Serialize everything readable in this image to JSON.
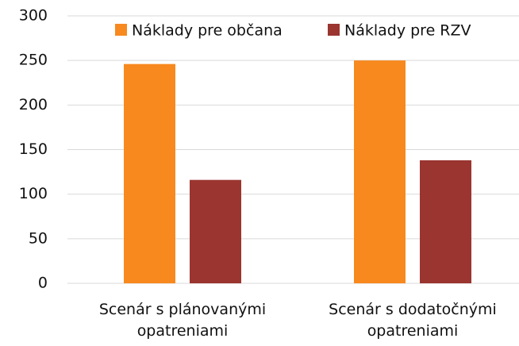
{
  "chart_data": {
    "type": "bar",
    "categories": [
      "Scenár s plánovanými opatreniami",
      "Scenár s dodatočnými opatreniami"
    ],
    "series": [
      {
        "name": "Náklady pre občana",
        "color": "#f7891f",
        "values": [
          246,
          250
        ]
      },
      {
        "name": "Náklady pre RZV",
        "color": "#9b3530",
        "values": [
          116,
          138
        ]
      }
    ],
    "ylim": [
      0,
      300
    ],
    "yticks": [
      0,
      50,
      100,
      150,
      200,
      250,
      300
    ],
    "grid": true,
    "legend": "top"
  }
}
